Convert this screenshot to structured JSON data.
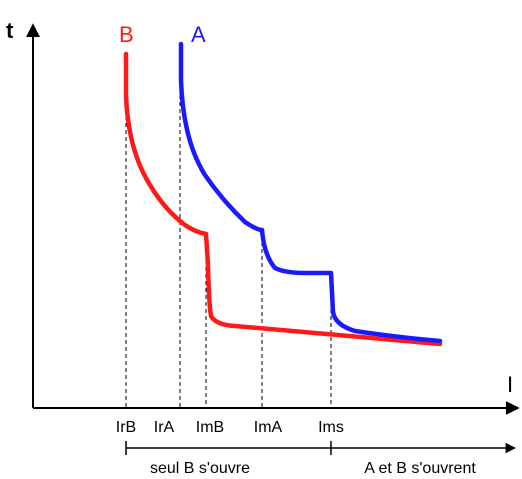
{
  "axes": {
    "y_label": "t",
    "x_label": "I"
  },
  "curves": [
    {
      "id": "B",
      "label": "B",
      "color": "#ff1a1a"
    },
    {
      "id": "A",
      "label": "A",
      "color": "#1a1aff"
    }
  ],
  "x_markers": [
    "IrB",
    "IrA",
    "ImB",
    "ImA",
    "Ims"
  ],
  "zones": [
    {
      "label": "seul B s'ouvre"
    },
    {
      "label": "A et B s'ouvrent"
    }
  ]
}
